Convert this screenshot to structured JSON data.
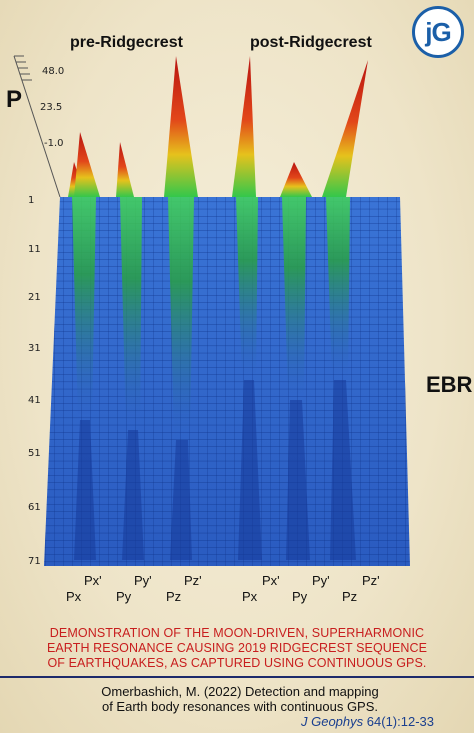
{
  "logo": {
    "text": "jG"
  },
  "figure": {
    "left_header": "pre-Ridgecrest",
    "right_header": "post-Ridgecrest",
    "z_axis_label": "P",
    "z_ticks": [
      "48.0",
      "23.5",
      "-1.0"
    ],
    "y_ticks": [
      "1",
      "11",
      "21",
      "31",
      "41",
      "51",
      "61",
      "71"
    ],
    "right_label": "EBR",
    "x_labels_front": [
      "Px",
      "Py",
      "Pz",
      "Px",
      "Py",
      "Pz"
    ],
    "x_labels_back": [
      "Px'",
      "Py'",
      "Pz'",
      "Px'",
      "Py'",
      "Pz'"
    ],
    "colors": {
      "surface_blue": "#2f63c9",
      "peak_red": "#d62a1a",
      "peak_green": "#35c94a",
      "grid": "#0c2f86"
    }
  },
  "caption": {
    "lines": [
      "DEMONSTRATION OF THE MOON-DRIVEN, SUPERHARMONIC",
      "EARTH RESONANCE CAUSING 2019 RIDGECREST SEQUENCE",
      "OF EARTHQUAKES, AS CAPTURED USING CONTINUOUS GPS."
    ],
    "color": "#c81e1e"
  },
  "citation": {
    "line1": "Omerbashich, M. (2022) Detection and mapping",
    "line2": "of Earth body resonances with continuous GPS.",
    "journal": "J Geophys",
    "volume": "64(1):12-33"
  }
}
